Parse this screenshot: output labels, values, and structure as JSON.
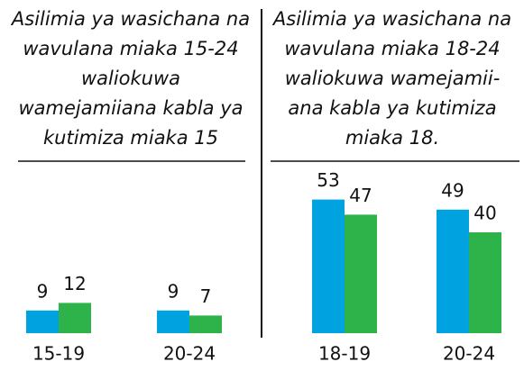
{
  "chart_data": [
    {
      "type": "bar",
      "title": [
        "Asilimia ya wasichana na",
        "wavulana miaka 15-24",
        "waliokuwa",
        "wamejamiiana kabla ya",
        "kutimiza miaka 15"
      ],
      "categories": [
        "15-19",
        "20-24"
      ],
      "series": [
        {
          "color": "#00a3e0",
          "values": [
            9,
            9
          ]
        },
        {
          "color": "#2db34a",
          "values": [
            12,
            7
          ]
        }
      ]
    },
    {
      "type": "bar",
      "title": [
        "Asilimia ya wasichana na",
        "wavulana miaka 18-24",
        "waliokuwa wamejamii-",
        "ana kabla ya kutimiza",
        "miaka 18."
      ],
      "categories": [
        "18-19",
        "20-24"
      ],
      "series": [
        {
          "color": "#00a3e0",
          "values": [
            53,
            49
          ]
        },
        {
          "color": "#2db34a",
          "values": [
            47,
            40
          ]
        }
      ]
    }
  ]
}
